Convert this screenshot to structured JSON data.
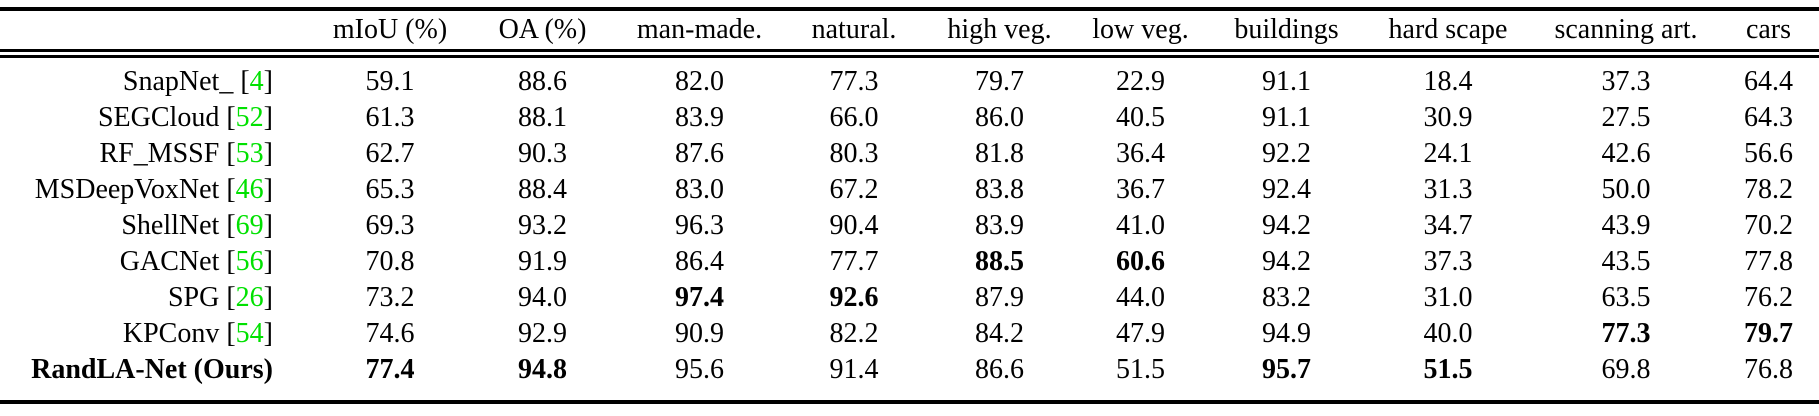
{
  "table": {
    "columns": [
      "",
      "mIoU (%)",
      "OA (%)",
      "man-made.",
      "natural.",
      "high veg.",
      "low veg.",
      "buildings",
      "hard scape",
      "scanning art.",
      "cars"
    ],
    "rows": [
      {
        "method": "SnapNet_",
        "ref": "4",
        "method_bold": false,
        "values": [
          "59.1",
          "88.6",
          "82.0",
          "77.3",
          "79.7",
          "22.9",
          "91.1",
          "18.4",
          "37.3",
          "64.4"
        ],
        "bold": []
      },
      {
        "method": "SEGCloud",
        "ref": "52",
        "method_bold": false,
        "values": [
          "61.3",
          "88.1",
          "83.9",
          "66.0",
          "86.0",
          "40.5",
          "91.1",
          "30.9",
          "27.5",
          "64.3"
        ],
        "bold": []
      },
      {
        "method": "RF_MSSF",
        "ref": "53",
        "method_bold": false,
        "values": [
          "62.7",
          "90.3",
          "87.6",
          "80.3",
          "81.8",
          "36.4",
          "92.2",
          "24.1",
          "42.6",
          "56.6"
        ],
        "bold": []
      },
      {
        "method": "MSDeepVoxNet",
        "ref": "46",
        "method_bold": false,
        "values": [
          "65.3",
          "88.4",
          "83.0",
          "67.2",
          "83.8",
          "36.7",
          "92.4",
          "31.3",
          "50.0",
          "78.2"
        ],
        "bold": []
      },
      {
        "method": "ShellNet",
        "ref": "69",
        "method_bold": false,
        "values": [
          "69.3",
          "93.2",
          "96.3",
          "90.4",
          "83.9",
          "41.0",
          "94.2",
          "34.7",
          "43.9",
          "70.2"
        ],
        "bold": []
      },
      {
        "method": "GACNet",
        "ref": "56",
        "method_bold": false,
        "values": [
          "70.8",
          "91.9",
          "86.4",
          "77.7",
          "88.5",
          "60.6",
          "94.2",
          "37.3",
          "43.5",
          "77.8"
        ],
        "bold": [
          4,
          5
        ]
      },
      {
        "method": "SPG",
        "ref": "26",
        "method_bold": false,
        "values": [
          "73.2",
          "94.0",
          "97.4",
          "92.6",
          "87.9",
          "44.0",
          "83.2",
          "31.0",
          "63.5",
          "76.2"
        ],
        "bold": [
          2,
          3
        ]
      },
      {
        "method": "KPConv",
        "ref": "54",
        "method_bold": false,
        "values": [
          "74.6",
          "92.9",
          "90.9",
          "82.2",
          "84.2",
          "47.9",
          "94.9",
          "40.0",
          "77.3",
          "79.7"
        ],
        "bold": [
          8,
          9
        ]
      },
      {
        "method": "RandLA-Net (Ours)",
        "ref": null,
        "method_bold": true,
        "values": [
          "77.4",
          "94.8",
          "95.6",
          "91.4",
          "86.6",
          "51.5",
          "95.7",
          "51.5",
          "69.8",
          "76.8"
        ],
        "bold": [
          0,
          1,
          6,
          7
        ]
      }
    ],
    "cite_open": "[",
    "cite_close": "]",
    "colors": {
      "cite": "#00e100",
      "text": "#000000",
      "background": "#ffffff"
    }
  }
}
